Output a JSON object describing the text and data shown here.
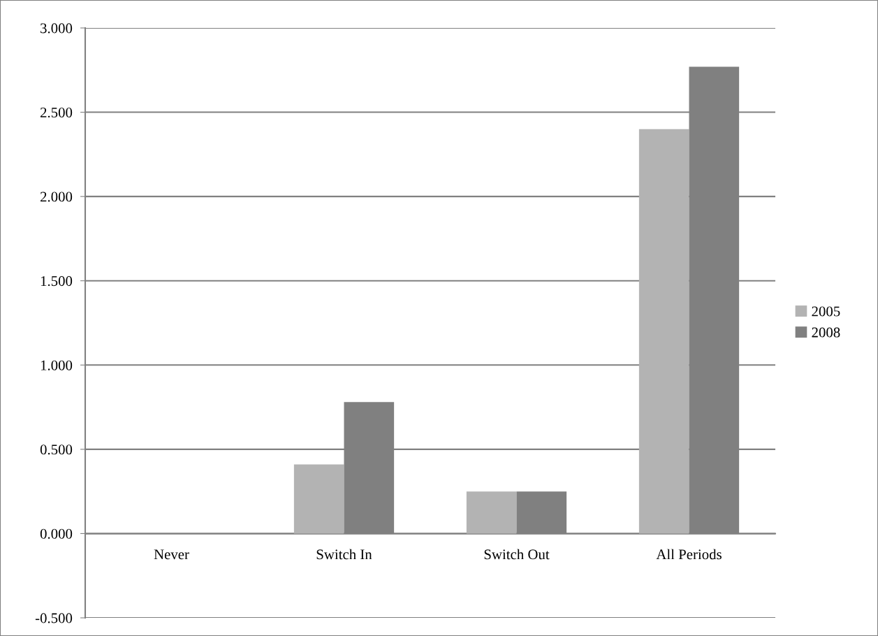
{
  "chart_data": {
    "type": "bar",
    "categories": [
      "Never",
      "Switch In",
      "Switch Out",
      "All Periods"
    ],
    "series": [
      {
        "name": "2005",
        "color": "#b3b3b3",
        "values": [
          0,
          0.41,
          0.25,
          2.4
        ]
      },
      {
        "name": "2008",
        "color": "#808080",
        "values": [
          0,
          0.78,
          0.25,
          2.77
        ]
      }
    ],
    "ylim": [
      -0.5,
      3
    ],
    "yticks": [
      {
        "value": -0.5,
        "label": "-0.500"
      },
      {
        "value": 0,
        "label": "0.000"
      },
      {
        "value": 0.5,
        "label": "0.500"
      },
      {
        "value": 1,
        "label": "1.000"
      },
      {
        "value": 1.5,
        "label": "1.500"
      },
      {
        "value": 2,
        "label": "2.000"
      },
      {
        "value": 2.5,
        "label": "2.500"
      },
      {
        "value": 3,
        "label": "3.000"
      }
    ],
    "grid": "y",
    "legend": "right"
  }
}
